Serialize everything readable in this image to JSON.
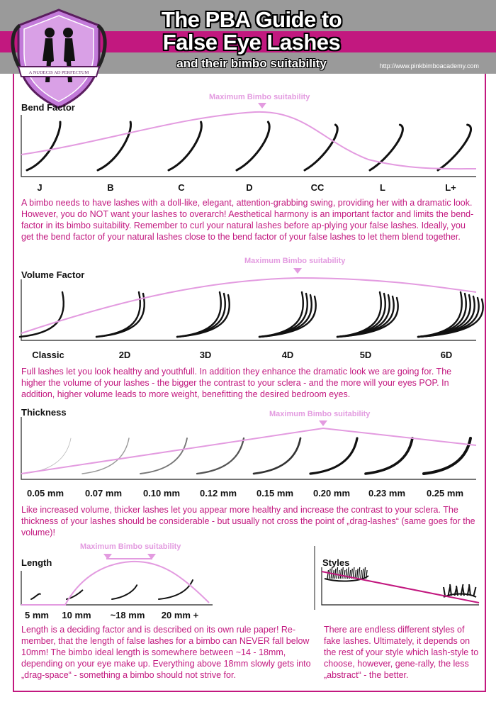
{
  "header": {
    "title_line1": "The PBA Guide to",
    "title_line2": "False Eye Lashes",
    "subtitle": "and their bimbo suitability",
    "url": "http://www.pinkbimboacademy.com",
    "logo_banner": "A NUDECIS AD PERFECTUM"
  },
  "colors": {
    "accent": "#c2187f",
    "curve": "#e39be0",
    "grey": "#9a9a9a"
  },
  "max_label": "Maximum Bimbo suitability",
  "bend": {
    "title": "Bend Factor",
    "items": [
      "J",
      "B",
      "C",
      "D",
      "CC",
      "L",
      "L+"
    ],
    "text": "A bimbo needs to have lashes with a doll-like, elegant, attention-grabbing swing, providing her with a dramatic look. However, you do NOT want your lashes to overarch! Aesthetical harmony is an important factor and limits the bend-factor in its bimbo suitability. Remember to curl your natural lashes before ap-plying your false lashes. Ideally, you get the bend factor of your natural lashes close to the bend factor of your false lashes to let them blend together."
  },
  "volume": {
    "title": "Volume Factor",
    "items": [
      "Classic",
      "2D",
      "3D",
      "4D",
      "5D",
      "6D"
    ],
    "text": "Full lashes let you look healthy and youthfull. In addition they enhance the dramatic look we are going for. The higher the volume of your lashes - the bigger the contrast to your sclera - and the more will your eyes POP. In addition, higher volume leads to more weight, benefitting the desired bedroom eyes."
  },
  "thickness": {
    "title": "Thickness",
    "items": [
      "0.05 mm",
      "0.07 mm",
      "0.10 mm",
      "0.12 mm",
      "0.15 mm",
      "0.20 mm",
      "0.23 mm",
      "0.25 mm"
    ],
    "text": "Like increased volume, thicker lashes let you appear more healthy and increase the contrast to your sclera. The thickness of your lashes should be considerable - but usually not cross the point of „drag-lashes“ (same goes for the volume)!"
  },
  "length": {
    "title": "Length",
    "items": [
      "5 mm",
      "10 mm",
      "~18 mm",
      "20 mm +"
    ],
    "text": "Length is a deciding factor and is described on its own rule paper! Re-member, that the length of false lashes for a bimbo can NEVER fall below 10mm! The bimbo ideal length is somewhere between ~14 - 18mm, depending on your eye make up. Everything above 18mm slowly gets into „drag-space“ - something a bimbo should not strive for."
  },
  "styles": {
    "title": "Styles",
    "text": "There are endless different styles of fake lashes. Ultimately, it depends on the rest of your style which lash-style to choose, however, gene-rally, the less „abstract“ - the better."
  }
}
